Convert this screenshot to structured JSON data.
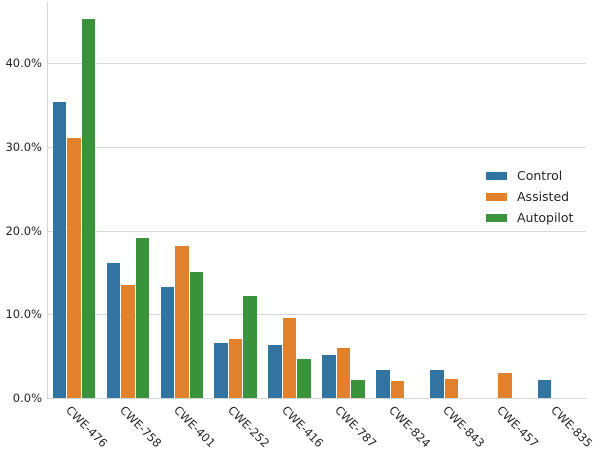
{
  "chart_data": {
    "type": "bar",
    "title": "",
    "xlabel": "",
    "ylabel": "",
    "categories": [
      "CWE-476",
      "CWE-758",
      "CWE-401",
      "CWE-252",
      "CWE-416",
      "CWE-787",
      "CWE-824",
      "CWE-843",
      "CWE-457",
      "CWE-835"
    ],
    "series": [
      {
        "name": "Control",
        "color": "#3274a1",
        "values": [
          35.4,
          16.1,
          13.2,
          6.6,
          6.3,
          5.1,
          3.3,
          3.3,
          0,
          2.1
        ]
      },
      {
        "name": "Assisted",
        "color": "#e1812c",
        "values": [
          31.0,
          13.5,
          18.2,
          7.0,
          9.6,
          6.0,
          2.0,
          2.3,
          3.0,
          0
        ]
      },
      {
        "name": "Autopilot",
        "color": "#3a923a",
        "values": [
          45.3,
          19.1,
          15.0,
          12.2,
          4.7,
          2.1,
          0,
          0,
          0,
          0
        ]
      }
    ],
    "y_ticks": [
      {
        "value": 0,
        "label": "0.0%"
      },
      {
        "value": 10,
        "label": "10.0%"
      },
      {
        "value": 20,
        "label": "20.0%"
      },
      {
        "value": 30,
        "label": "30.0%"
      },
      {
        "value": 40,
        "label": "40.0%"
      }
    ],
    "ylim": [
      0,
      47.5
    ],
    "grid": "horizontal",
    "legend": {
      "position": "center-right",
      "entries": [
        "Control",
        "Assisted",
        "Autopilot"
      ]
    }
  },
  "colors": {
    "grid": "#d7d7d7",
    "text": "#262626",
    "background": "#ffffff"
  }
}
